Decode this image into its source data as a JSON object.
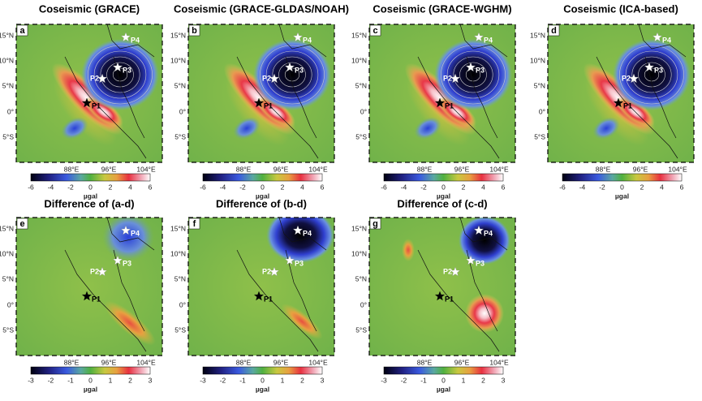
{
  "panels": [
    {
      "title": "Coseismic (GRACE)",
      "letter": "a"
    },
    {
      "title": "Coseismic (GRACE-GLDAS/NOAH)",
      "letter": "b"
    },
    {
      "title": "Coseismic (GRACE-WGHM)",
      "letter": "c"
    },
    {
      "title": "Coseismic (ICA-based)",
      "letter": "d"
    },
    {
      "title": "Difference of (a-d)",
      "letter": "e"
    },
    {
      "title": "Difference of (b-d)",
      "letter": "f"
    },
    {
      "title": "Difference of (c-d)",
      "letter": "g"
    }
  ],
  "lat_ticks": [
    "15°N",
    "10°N",
    "5°N",
    "0°",
    "5°S"
  ],
  "lon_ticks": [
    "88°E",
    "96°E",
    "104°E"
  ],
  "points": [
    "P1",
    "P2",
    "P3",
    "P4"
  ],
  "colorbar_top": {
    "ticks": [
      -6,
      -4,
      -2,
      0,
      2,
      4,
      6
    ],
    "unit": "µgal"
  },
  "colorbar_bottom": {
    "ticks": [
      -3,
      -2,
      -1,
      0,
      1,
      2,
      3
    ],
    "unit": "µgal"
  }
}
